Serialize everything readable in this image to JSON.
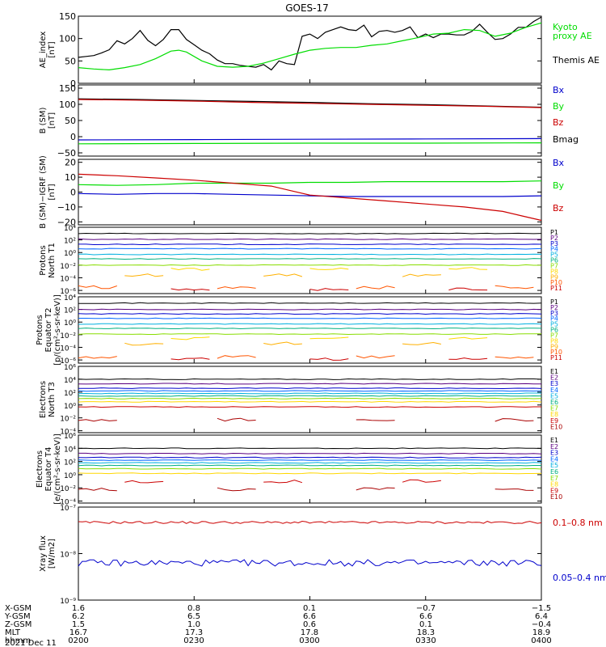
{
  "title": "GOES-17",
  "colors": {
    "black": "#000000",
    "green": "#00dd00",
    "red": "#cc0000",
    "blue": "#0000cc"
  },
  "chart_data": [
    {
      "type": "line",
      "id": "ae",
      "ylabel": [
        "AE_index",
        "[nT]"
      ],
      "ylim": [
        0,
        150
      ],
      "yticks": [
        0,
        50,
        100,
        150
      ],
      "ytick_labels": [
        "0",
        "50",
        "100",
        "150"
      ],
      "series": [
        {
          "name": "Themis AE",
          "color": "#000000",
          "x": [
            0,
            2,
            4,
            6,
            8,
            10,
            12,
            14,
            16,
            18,
            20,
            22,
            24,
            26,
            28,
            30,
            32,
            34,
            36,
            38,
            40,
            42,
            44,
            46,
            48,
            50,
            52,
            54,
            56,
            58,
            60,
            62,
            64,
            66,
            68,
            70,
            72,
            74,
            76,
            78,
            80,
            82,
            84,
            86,
            88,
            90,
            92,
            94,
            96,
            98,
            100,
            102,
            104,
            106,
            108,
            110,
            112,
            114,
            116,
            118,
            120
          ],
          "y": [
            58,
            60,
            62,
            68,
            75,
            95,
            88,
            100,
            118,
            96,
            84,
            98,
            120,
            120,
            98,
            86,
            74,
            66,
            52,
            44,
            44,
            40,
            38,
            36,
            42,
            30,
            50,
            44,
            42,
            105,
            110,
            100,
            114,
            120,
            126,
            120,
            118,
            130,
            104,
            116,
            118,
            114,
            118,
            126,
            102,
            110,
            102,
            110,
            110,
            108,
            108,
            116,
            132,
            114,
            98,
            100,
            110,
            125,
            125,
            138,
            148
          ]
        },
        {
          "name": "Kyoto proxy AE",
          "color": "#00dd00",
          "x": [
            0,
            4,
            8,
            12,
            16,
            20,
            24,
            26,
            28,
            32,
            36,
            40,
            44,
            48,
            52,
            56,
            60,
            64,
            68,
            72,
            76,
            80,
            84,
            88,
            92,
            96,
            100,
            104,
            108,
            112,
            116,
            120
          ],
          "y": [
            35,
            32,
            30,
            35,
            42,
            55,
            72,
            74,
            70,
            50,
            38,
            36,
            38,
            45,
            55,
            65,
            74,
            78,
            80,
            80,
            85,
            88,
            95,
            102,
            110,
            112,
            120,
            118,
            105,
            112,
            125,
            135
          ]
        }
      ],
      "legend": [
        {
          "text": "Kyoto",
          "color": "#00dd00"
        },
        {
          "text": "proxy AE",
          "color": "#00dd00"
        },
        {
          "text": "Themis AE",
          "color": "#000000"
        }
      ]
    },
    {
      "type": "line",
      "id": "bsm",
      "ylabel": [
        "B (SM)",
        "[nT]"
      ],
      "ylim": [
        -60,
        160
      ],
      "yticks": [
        -50,
        0,
        50,
        100,
        150
      ],
      "ytick_labels": [
        "−50",
        "0",
        "50",
        "100",
        "150"
      ],
      "series": [
        {
          "name": "Bx",
          "color": "#0000cc",
          "x": [
            0,
            30,
            60,
            90,
            120
          ],
          "y": [
            -10,
            -9,
            -8,
            -7,
            -6
          ]
        },
        {
          "name": "By",
          "color": "#00dd00",
          "x": [
            0,
            30,
            60,
            90,
            120
          ],
          "y": [
            -22,
            -21,
            -20,
            -20,
            -19
          ]
        },
        {
          "name": "Bmag",
          "color": "#000000",
          "x": [
            0,
            15,
            30,
            45,
            60,
            75,
            90,
            105,
            120
          ],
          "y": [
            117,
            115,
            112,
            109,
            106,
            102,
            99,
            95,
            91
          ]
        },
        {
          "name": "Bz",
          "color": "#cc0000",
          "x": [
            0,
            15,
            30,
            45,
            60,
            75,
            90,
            105,
            120
          ],
          "y": [
            115,
            113,
            110,
            106,
            103,
            100,
            97,
            94,
            90
          ]
        }
      ],
      "legend": [
        {
          "text": "Bx",
          "color": "#0000cc"
        },
        {
          "text": "By",
          "color": "#00dd00"
        },
        {
          "text": "Bz",
          "color": "#cc0000"
        },
        {
          "text": "Bmag",
          "color": "#000000"
        }
      ]
    },
    {
      "type": "line",
      "id": "bigrf",
      "ylabel": [
        "B (SM)−IGRF (SM)",
        "[nT]"
      ],
      "ylim": [
        -22,
        22
      ],
      "yticks": [
        -20,
        -10,
        0,
        10,
        20
      ],
      "ytick_labels": [
        "−20",
        "−10",
        "0",
        "10",
        "20"
      ],
      "series": [
        {
          "name": "By",
          "color": "#00dd00",
          "x": [
            0,
            10,
            20,
            30,
            40,
            50,
            60,
            70,
            80,
            90,
            100,
            110,
            120
          ],
          "y": [
            5,
            4.5,
            5,
            6,
            6,
            6,
            6.5,
            6.5,
            7,
            7,
            7,
            7,
            7.5
          ]
        },
        {
          "name": "Bx",
          "color": "#0000cc",
          "x": [
            0,
            10,
            20,
            30,
            40,
            50,
            60,
            70,
            80,
            90,
            100,
            110,
            120
          ],
          "y": [
            -1,
            -1.5,
            -1,
            -1,
            -1.5,
            -2,
            -2.5,
            -3,
            -3,
            -3,
            -3,
            -3,
            -2.5
          ]
        },
        {
          "name": "Bz",
          "color": "#cc0000",
          "x": [
            0,
            10,
            20,
            30,
            40,
            45,
            50,
            55,
            60,
            70,
            80,
            90,
            100,
            110,
            115,
            120
          ],
          "y": [
            12,
            11,
            9.5,
            8,
            6,
            5,
            4,
            1,
            -2,
            -4,
            -6,
            -8,
            -10,
            -13,
            -16,
            -19
          ]
        }
      ],
      "legend": [
        {
          "text": "Bx",
          "color": "#0000cc"
        },
        {
          "text": "By",
          "color": "#00dd00"
        },
        {
          "text": "Bz",
          "color": "#cc0000"
        }
      ]
    },
    {
      "type": "line",
      "id": "pn",
      "log": true,
      "ylabel": [
        "Protons",
        "North T1"
      ],
      "ylim_exp": [
        -6.5,
        4
      ],
      "ytick_exps": [
        -6,
        -4,
        -2,
        0,
        2,
        4
      ],
      "ytick_labels": [
        "10⁻⁶",
        "10⁻⁴",
        "10⁻²",
        "10⁰",
        "10²",
        "10⁴"
      ],
      "channels": [
        {
          "name": "P1",
          "color": "#000000",
          "exp": 3.0
        },
        {
          "name": "P2",
          "color": "#5a0080",
          "exp": 2.1
        },
        {
          "name": "P3",
          "color": "#0000cc",
          "exp": 1.3
        },
        {
          "name": "P4",
          "color": "#0066ff",
          "exp": 0.6
        },
        {
          "name": "P5",
          "color": "#00b0e0",
          "exp": -0.3
        },
        {
          "name": "P6",
          "color": "#00b080",
          "exp": -1.0
        },
        {
          "name": "P7",
          "color": "#88dd00",
          "exp": -2.0
        },
        {
          "name": "P8",
          "color": "#ffd700",
          "exp": -2.6
        },
        {
          "name": "P9",
          "color": "#ffb000",
          "exp": -3.6
        },
        {
          "name": "P10",
          "color": "#ff5500",
          "exp": -5.5
        },
        {
          "name": "P11",
          "color": "#cc0000",
          "exp": -5.8
        }
      ]
    },
    {
      "type": "line",
      "id": "pe",
      "log": true,
      "ylabel": [
        "Protons",
        "Equator T2",
        "[p/(cm²-s-sr-keV)]"
      ],
      "ylim_exp": [
        -6.5,
        4
      ],
      "ytick_exps": [
        -6,
        -4,
        -2,
        0,
        2,
        4
      ],
      "ytick_labels": [
        "10⁻⁶",
        "10⁻⁴",
        "10⁻²",
        "10⁰",
        "10²",
        "10⁴"
      ],
      "channels": [
        {
          "name": "P1",
          "color": "#000000",
          "exp": 3.0
        },
        {
          "name": "P2",
          "color": "#5a0080",
          "exp": 2.0
        },
        {
          "name": "P3",
          "color": "#0000cc",
          "exp": 1.3
        },
        {
          "name": "P4",
          "color": "#0066ff",
          "exp": 0.6
        },
        {
          "name": "P5",
          "color": "#00b0e0",
          "exp": -0.3
        },
        {
          "name": "P6",
          "color": "#00b080",
          "exp": -1.0
        },
        {
          "name": "P7",
          "color": "#88dd00",
          "exp": -1.9
        },
        {
          "name": "P8",
          "color": "#ffd700",
          "exp": -2.6
        },
        {
          "name": "P9",
          "color": "#ffb000",
          "exp": -3.4
        },
        {
          "name": "P10",
          "color": "#ff5500",
          "exp": -5.5
        },
        {
          "name": "P11",
          "color": "#cc0000",
          "exp": -5.8
        }
      ]
    },
    {
      "type": "line",
      "id": "en",
      "log": true,
      "ylabel": [
        "Electrons",
        "North T3"
      ],
      "ylim_exp": [
        -4.3,
        6
      ],
      "ytick_exps": [
        -4,
        -2,
        0,
        2,
        4,
        6
      ],
      "ytick_labels": [
        "10⁻⁴",
        "10⁻²",
        "10⁰",
        "10²",
        "10⁴",
        "10⁶"
      ],
      "channels": [
        {
          "name": "E1",
          "color": "#000000",
          "exp": 4.0
        },
        {
          "name": "E2",
          "color": "#5a0080",
          "exp": 3.3
        },
        {
          "name": "E3",
          "color": "#0000cc",
          "exp": 2.6
        },
        {
          "name": "E4",
          "color": "#0066ff",
          "exp": 2.2
        },
        {
          "name": "E5",
          "color": "#00b0e0",
          "exp": 1.8
        },
        {
          "name": "E6",
          "color": "#00b080",
          "exp": 1.4
        },
        {
          "name": "E7",
          "color": "#88dd00",
          "exp": 1.0
        },
        {
          "name": "E8",
          "color": "#ffd700",
          "exp": 0.5
        },
        {
          "name": "E9",
          "color": "#cc0000",
          "exp": -0.3
        },
        {
          "name": "E10",
          "color": "#aa0000",
          "exp": -2.3
        }
      ]
    },
    {
      "type": "line",
      "id": "ee",
      "log": true,
      "ylabel": [
        "Electrons",
        "Equator T4",
        "[e/(cm²-s-sr-keV)]"
      ],
      "ylim_exp": [
        -4.3,
        6
      ],
      "ytick_exps": [
        -4,
        -2,
        0,
        2,
        4,
        6
      ],
      "ytick_labels": [
        "10⁻⁴",
        "10⁻²",
        "10⁰",
        "10²",
        "10⁴",
        "10⁶"
      ],
      "channels": [
        {
          "name": "E1",
          "color": "#000000",
          "exp": 4.0
        },
        {
          "name": "E2",
          "color": "#5a0080",
          "exp": 3.2
        },
        {
          "name": "E3",
          "color": "#0000cc",
          "exp": 2.6
        },
        {
          "name": "E4",
          "color": "#0066ff",
          "exp": 2.2
        },
        {
          "name": "E5",
          "color": "#00b0e0",
          "exp": 1.8
        },
        {
          "name": "E6",
          "color": "#00b080",
          "exp": 1.4
        },
        {
          "name": "E7",
          "color": "#88dd00",
          "exp": 0.9
        },
        {
          "name": "E8",
          "color": "#ffd700",
          "exp": 0.2
        },
        {
          "name": "E9",
          "color": "#cc0000",
          "exp": -1.0
        },
        {
          "name": "E10",
          "color": "#aa0000",
          "exp": -2.2
        }
      ]
    },
    {
      "type": "line",
      "id": "xray",
      "log": true,
      "ylabel": [
        "Xray flux",
        "[W/m2]"
      ],
      "ylim_exp": [
        -9,
        -7
      ],
      "ytick_exps": [
        -9,
        -8,
        -7
      ],
      "ytick_labels": [
        "10⁻⁹",
        "10⁻⁸",
        "10⁻⁷"
      ],
      "series": [
        {
          "name": "0.1–0.8 nm",
          "color": "#cc0000",
          "level_exp": -7.33
        },
        {
          "name": "0.05–0.4 nm",
          "color": "#0000cc",
          "level_exp": -8.2
        }
      ],
      "legend": [
        {
          "text": "0.1–0.8 nm",
          "color": "#cc0000"
        },
        {
          "text": "0.05–0.4 nm",
          "color": "#0000cc"
        }
      ]
    }
  ],
  "x_axis": {
    "rows": [
      {
        "label": "X-GSM",
        "values": [
          "1.6",
          "0.8",
          "0.1",
          "−0.7",
          "−1.5"
        ]
      },
      {
        "label": "Y-GSM",
        "values": [
          "6.2",
          "6.5",
          "6.6",
          "6.6",
          "6.4"
        ]
      },
      {
        "label": "Z-GSM",
        "values": [
          "1.5",
          "1.0",
          "0.6",
          "0.1",
          "−0.4"
        ]
      },
      {
        "label": "MLT",
        "values": [
          "16.7",
          "17.3",
          "17.8",
          "18.3",
          "18.9"
        ]
      },
      {
        "label": "hhmm",
        "values": [
          "0200",
          "0230",
          "0300",
          "0330",
          "0400"
        ]
      }
    ],
    "date": "2021 Dec 11"
  }
}
